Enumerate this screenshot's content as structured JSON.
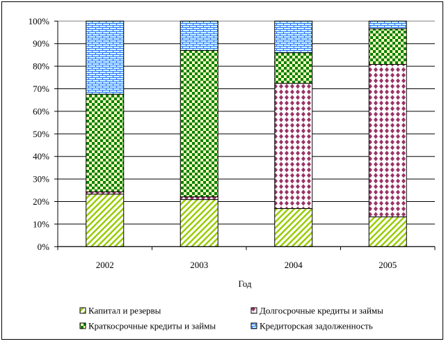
{
  "chart_data": {
    "type": "bar",
    "stacked": "percent",
    "title": "",
    "xlabel": "Год",
    "ylabel": "",
    "ylim": [
      0,
      100
    ],
    "yticks": [
      "0%",
      "10%",
      "20%",
      "30%",
      "40%",
      "50%",
      "60%",
      "70%",
      "80%",
      "90%",
      "100%"
    ],
    "categories": [
      "2002",
      "2003",
      "2004",
      "2005"
    ],
    "grid": true,
    "legend_position": "bottom",
    "series": [
      {
        "name": "Капитал и резервы",
        "color": "#99cc00",
        "values": [
          23.3,
          20.9,
          16.9,
          13.2
        ]
      },
      {
        "name": "Долгосрочные кредиты и займы",
        "color": "#993366",
        "values": [
          1.0,
          1.2,
          55.5,
          67.6
        ]
      },
      {
        "name": "Краткосрочные кредиты и займы",
        "color": "#008000",
        "values": [
          43.3,
          64.9,
          13.6,
          15.8
        ]
      },
      {
        "name": "Кредиторская задолженность",
        "color": "#3366ff",
        "values": [
          32.4,
          13.0,
          14.0,
          3.4
        ]
      }
    ]
  }
}
